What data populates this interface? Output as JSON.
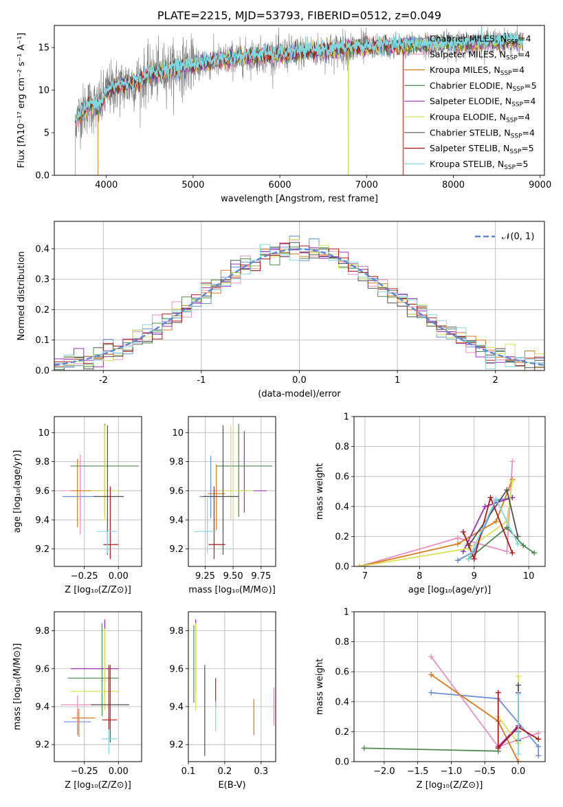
{
  "colors": {
    "Chabrier MILES": "#6a8fd8",
    "Salpeter MILES": "#e890c0",
    "Kroupa MILES": "#d67a1a",
    "Chabrier ELODIE": "#4e8a4e",
    "Salpeter ELODIE": "#9a30b8",
    "Kroupa ELODIE": "#d8e050",
    "Chabrier STELIB": "#505050",
    "Salpeter STELIB": "#b01818",
    "Kroupa STELIB": "#80d8e0",
    "gauss": "#5b86d6"
  },
  "chart_data": [
    {
      "id": "spectrum",
      "type": "line",
      "title": "PLATE=2215, MJD=53793, FIBERID=0512, z=0.049",
      "xlabel": "wavelength [Angstrom, rest frame]",
      "ylabel": "Flux [fλ10⁻¹⁷ erg cm⁻² s⁻¹ A⁻¹]",
      "xlim": [
        3400,
        9050
      ],
      "ylim": [
        0,
        17.6
      ],
      "xticks": [
        4000,
        5000,
        6000,
        7000,
        8000,
        9000
      ],
      "yticks": [
        0,
        5,
        10,
        15
      ],
      "continuum": {
        "x": [
          3620,
          3700,
          3800,
          3900,
          3950,
          4000,
          4100,
          4200,
          4300,
          4400,
          4500,
          4600,
          4700,
          4800,
          5000,
          5200,
          5400,
          5600,
          5800,
          6000,
          6200,
          6400,
          6600,
          6800,
          7000,
          7200,
          7400,
          7600,
          7800,
          8000,
          8200,
          8400,
          8600,
          8800
        ],
        "y": [
          6.0,
          7.2,
          8.3,
          8.0,
          8.6,
          9.8,
          10.4,
          10.6,
          10.8,
          11.2,
          11.8,
          12.0,
          12.4,
          12.5,
          13.0,
          13.3,
          13.6,
          13.9,
          14.1,
          14.2,
          14.4,
          14.6,
          14.7,
          14.9,
          15.0,
          15.2,
          15.2,
          15.3,
          15.4,
          15.4,
          15.5,
          15.6,
          15.7,
          15.7
        ]
      },
      "notes": [
        "dropouts to 0 near 3900, 6790 and 7420"
      ],
      "legend_position": "upper right",
      "legend": [
        "Chabrier MILES, N_SSP=4",
        "Salpeter MILES, N_SSP=4",
        "Kroupa MILES, N_SSP=4",
        "Chabrier ELODIE, N_SSP=5",
        "Salpeter ELODIE, N_SSP=4",
        "Kroupa ELODIE, N_SSP=4",
        "Chabrier STELIB, N_SSP=4",
        "Salpeter STELIB, N_SSP=5",
        "Kroupa STELIB, N_SSP=5"
      ],
      "series_keys": [
        "Chabrier MILES",
        "Salpeter MILES",
        "Kroupa MILES",
        "Chabrier ELODIE",
        "Salpeter ELODIE",
        "Kroupa ELODIE",
        "Chabrier STELIB",
        "Salpeter STELIB",
        "Kroupa STELIB"
      ]
    },
    {
      "id": "residuals",
      "type": "step",
      "xlabel": "(data-model)/error",
      "ylabel": "Normed distribution",
      "xlim": [
        -2.5,
        2.5
      ],
      "ylim": [
        0,
        0.49
      ],
      "xticks": [
        -2,
        -1,
        0,
        1,
        2
      ],
      "yticks": [
        0.0,
        0.1,
        0.2,
        0.3,
        0.4
      ],
      "bin_width": 0.1,
      "legend": [
        "𝒩(0, 1)"
      ],
      "legend_position": "upper right"
    },
    {
      "id": "age-vs-z",
      "type": "errorbar",
      "xlabel": "Z [log₁₀(Z/Z⊙)]",
      "ylabel": "age  [log₁₀(age/yr)]",
      "xlim": [
        -0.47,
        0.17
      ],
      "ylim": [
        9.08,
        10.11
      ],
      "xticks": [
        -0.25,
        0.0
      ],
      "xticklabels": [
        "−0.25",
        "0.00"
      ],
      "yticks": [
        9.2,
        9.4,
        9.6,
        9.8,
        10.0
      ],
      "points": [
        {
          "key": "Chabrier MILES",
          "x": -0.28,
          "xerr": [
            0.13,
            0.13
          ],
          "y": 9.56,
          "yerr": [
            0.15,
            0.2
          ]
        },
        {
          "key": "Salpeter MILES",
          "x": -0.28,
          "xerr": [
            0.15,
            0.15
          ],
          "y": 9.6,
          "yerr": [
            0.3,
            0.25
          ]
        },
        {
          "key": "Kroupa MILES",
          "x": -0.3,
          "xerr": [
            0.05,
            0.2
          ],
          "y": 9.6,
          "yerr": [
            0.25,
            0.22
          ]
        },
        {
          "key": "Chabrier ELODIE",
          "x": -0.1,
          "xerr": [
            0.25,
            0.25
          ],
          "y": 9.77,
          "yerr": [
            0.35,
            0.29
          ]
        },
        {
          "key": "Salpeter ELODIE",
          "x": -0.1,
          "xerr": [
            0.1,
            0.07
          ],
          "y": 9.6,
          "yerr": [
            0.15,
            0.45
          ]
        },
        {
          "key": "Kroupa ELODIE",
          "x": -0.1,
          "xerr": [
            0.1,
            0.1
          ],
          "y": 9.6,
          "yerr": [
            0.2,
            0.45
          ]
        },
        {
          "key": "Chabrier STELIB",
          "x": -0.08,
          "xerr": [
            0.1,
            0.12
          ],
          "y": 9.56,
          "yerr": [
            0.4,
            0.49
          ]
        },
        {
          "key": "Salpeter STELIB",
          "x": -0.06,
          "xerr": [
            0.05,
            0.06
          ],
          "y": 9.23,
          "yerr": [
            0.1,
            0.4
          ]
        },
        {
          "key": "Kroupa STELIB",
          "x": -0.08,
          "xerr": [
            0.08,
            0.07
          ],
          "y": 9.32,
          "yerr": [
            0.15,
            0.0
          ]
        }
      ]
    },
    {
      "id": "age-vs-mass",
      "type": "errorbar",
      "xlabel": "mass [log₁₀(M/M⊙)]",
      "ylabel": "",
      "xlim": [
        9.1,
        9.88
      ],
      "ylim": [
        9.08,
        10.11
      ],
      "xticks": [
        9.25,
        9.5,
        9.75
      ],
      "xticklabels": [
        "9.25",
        "9.50",
        "9.75"
      ],
      "yticks": [
        9.2,
        9.4,
        9.6,
        9.8,
        10.0
      ],
      "points": [
        {
          "key": "Chabrier MILES",
          "x": 9.3,
          "xerr": [
            0.1,
            0.03
          ],
          "y": 9.56,
          "yerr": [
            0.15,
            0.28
          ]
        },
        {
          "key": "Salpeter MILES",
          "x": 9.41,
          "xerr": [
            0.1,
            0.1
          ],
          "y": 9.6,
          "yerr": [
            0.3,
            0.22
          ]
        },
        {
          "key": "Kroupa MILES",
          "x": 9.35,
          "xerr": [
            0.08,
            0.08
          ],
          "y": 9.58,
          "yerr": [
            0.25,
            0.2
          ]
        },
        {
          "key": "Chabrier ELODIE",
          "x": 9.55,
          "xerr": [
            0.2,
            0.3
          ],
          "y": 9.77,
          "yerr": [
            0.35,
            0.29
          ]
        },
        {
          "key": "Salpeter ELODIE",
          "x": 9.6,
          "xerr": [
            0.05,
            0.2
          ],
          "y": 9.6,
          "yerr": [
            0.15,
            0.41
          ]
        },
        {
          "key": "Kroupa ELODIE",
          "x": 9.48,
          "xerr": [
            0.1,
            0.2
          ],
          "y": 9.6,
          "yerr": [
            0.2,
            0.45
          ]
        },
        {
          "key": "Chabrier STELIB",
          "x": 9.41,
          "xerr": [
            0.18,
            0.14
          ],
          "y": 9.56,
          "yerr": [
            0.4,
            0.49
          ]
        },
        {
          "key": "Salpeter STELIB",
          "x": 9.33,
          "xerr": [
            0.05,
            0.1
          ],
          "y": 9.23,
          "yerr": [
            0.1,
            0.4
          ]
        },
        {
          "key": "Kroupa STELIB",
          "x": 9.27,
          "xerr": [
            0.12,
            0.08
          ],
          "y": 9.32,
          "yerr": [
            0.15,
            0.23
          ]
        }
      ]
    },
    {
      "id": "weight-vs-age",
      "type": "line",
      "xlabel": "age  [log₁₀(age/yr)]",
      "ylabel": "mass weight",
      "xlim": [
        6.8,
        10.3
      ],
      "ylim": [
        0,
        1.0
      ],
      "xticks": [
        7,
        8,
        9,
        10
      ],
      "yticks": [
        0.0,
        0.2,
        0.4,
        0.6,
        0.8,
        1.0
      ],
      "series": [
        {
          "key": "Chabrier MILES",
          "x": [
            8.7,
            9.0,
            9.4,
            9.7
          ],
          "y": [
            0.04,
            0.1,
            0.44,
            0.46
          ]
        },
        {
          "key": "Salpeter MILES",
          "x": [
            6.9,
            8.7,
            9.6,
            9.7
          ],
          "y": [
            0.0,
            0.19,
            0.1,
            0.7
          ]
        },
        {
          "key": "Kroupa MILES",
          "x": [
            6.9,
            8.7,
            9.4,
            9.7
          ],
          "y": [
            0.0,
            0.15,
            0.3,
            0.58
          ]
        },
        {
          "key": "Chabrier ELODIE",
          "x": [
            8.9,
            9.6,
            9.9,
            10.1
          ],
          "y": [
            0.05,
            0.26,
            0.14,
            0.09
          ]
        },
        {
          "key": "Salpeter ELODIE",
          "x": [
            8.8,
            9.2,
            9.7
          ],
          "y": [
            0.1,
            0.4,
            0.46
          ]
        },
        {
          "key": "Kroupa ELODIE",
          "x": [
            6.9,
            8.9,
            9.6,
            9.7
          ],
          "y": [
            0.0,
            0.12,
            0.3,
            0.57
          ]
        },
        {
          "key": "Chabrier STELIB",
          "x": [
            8.9,
            9.6,
            9.8
          ],
          "y": [
            0.14,
            0.51,
            0.2
          ]
        },
        {
          "key": "Salpeter STELIB",
          "x": [
            8.8,
            9.0,
            9.3,
            9.7
          ],
          "y": [
            0.23,
            0.05,
            0.46,
            0.09
          ]
        },
        {
          "key": "Kroupa STELIB",
          "x": [
            8.9,
            9.4,
            9.8
          ],
          "y": [
            0.05,
            0.45,
            0.15
          ]
        }
      ]
    },
    {
      "id": "mass-vs-z",
      "type": "errorbar",
      "xlabel": "Z [log₁₀(Z/Z⊙)]",
      "ylabel": "mass [log₁₀(M/M⊙)]",
      "xlim": [
        -0.47,
        0.17
      ],
      "ylim": [
        9.11,
        9.9
      ],
      "xticks": [
        -0.25,
        0.0
      ],
      "xticklabels": [
        "−0.25",
        "0.00"
      ],
      "yticks": [
        9.2,
        9.4,
        9.6,
        9.8
      ],
      "points": [
        {
          "key": "Chabrier MILES",
          "x": -0.3,
          "xerr": [
            0.1,
            0.1
          ],
          "y": 9.32,
          "yerr": [
            0.07,
            0.05
          ]
        },
        {
          "key": "Salpeter MILES",
          "x": -0.3,
          "xerr": [
            0.12,
            0.12
          ],
          "y": 9.41,
          "yerr": [
            0.1,
            0.05
          ]
        },
        {
          "key": "Kroupa MILES",
          "x": -0.29,
          "xerr": [
            0.05,
            0.12
          ],
          "y": 9.34,
          "yerr": [
            0.1,
            0.05
          ]
        },
        {
          "key": "Chabrier ELODIE",
          "x": -0.12,
          "xerr": [
            0.25,
            0.12
          ],
          "y": 9.55,
          "yerr": [
            0.2,
            0.29
          ]
        },
        {
          "key": "Salpeter ELODIE",
          "x": -0.1,
          "xerr": [
            0.25,
            0.1
          ],
          "y": 9.6,
          "yerr": [
            0.15,
            0.26
          ]
        },
        {
          "key": "Kroupa ELODIE",
          "x": -0.1,
          "xerr": [
            0.25,
            0.1
          ],
          "y": 9.48,
          "yerr": [
            0.1,
            0.33
          ]
        },
        {
          "key": "Chabrier STELIB",
          "x": -0.06,
          "xerr": [
            0.14,
            0.14
          ],
          "y": 9.41,
          "yerr": [
            0.2,
            0.21
          ]
        },
        {
          "key": "Salpeter STELIB",
          "x": -0.07,
          "xerr": [
            0.05,
            0.06
          ],
          "y": 9.33,
          "yerr": [
            0.05,
            0.29
          ]
        },
        {
          "key": "Kroupa STELIB",
          "x": -0.07,
          "xerr": [
            0.05,
            0.06
          ],
          "y": 9.23,
          "yerr": [
            0.08,
            0.05
          ]
        }
      ]
    },
    {
      "id": "mass-vs-ebv",
      "type": "errorbar",
      "xlabel": "E(B-V)",
      "ylabel": "",
      "xlim": [
        0.1,
        0.34
      ],
      "ylim": [
        9.11,
        9.9
      ],
      "xticks": [
        0.1,
        0.2,
        0.3
      ],
      "yticks": [
        9.2,
        9.4,
        9.6,
        9.8
      ],
      "points": [
        {
          "key": "Chabrier MILES",
          "x": 0.12,
          "xerr": [
            0,
            0
          ],
          "y": 9.6,
          "yerr": [
            0.12,
            0.25
          ]
        },
        {
          "key": "Salpeter MILES",
          "x": 0.335,
          "xerr": [
            0,
            0
          ],
          "y": 9.4,
          "yerr": [
            0.1,
            0.1
          ]
        },
        {
          "key": "Kroupa MILES",
          "x": 0.28,
          "xerr": [
            0,
            0
          ],
          "y": 9.34,
          "yerr": [
            0.09,
            0.1
          ]
        },
        {
          "key": "Chabrier ELODIE",
          "x": 0.115,
          "xerr": [
            0,
            0
          ],
          "y": 9.55,
          "yerr": [
            0.13,
            0.28
          ]
        },
        {
          "key": "Salpeter ELODIE",
          "x": 0.12,
          "xerr": [
            0,
            0
          ],
          "y": 9.6,
          "yerr": [
            0.13,
            0.26
          ]
        },
        {
          "key": "Kroupa ELODIE",
          "x": 0.12,
          "xerr": [
            0,
            0
          ],
          "y": 9.6,
          "yerr": [
            0.22,
            0.24
          ]
        },
        {
          "key": "Chabrier STELIB",
          "x": 0.145,
          "xerr": [
            0,
            0
          ],
          "y": 9.4,
          "yerr": [
            0.26,
            0.22
          ]
        },
        {
          "key": "Salpeter STELIB",
          "x": 0.175,
          "xerr": [
            0,
            0
          ],
          "y": 9.48,
          "yerr": [
            0.08,
            0.07
          ]
        },
        {
          "key": "Kroupa STELIB",
          "x": 0.175,
          "xerr": [
            0,
            0
          ],
          "y": 9.36,
          "yerr": [
            0.09,
            0.07
          ]
        }
      ]
    },
    {
      "id": "weight-vs-z",
      "type": "line",
      "xlabel": "Z [log₁₀(Z/Z⊙)]",
      "ylabel": "mass weight",
      "xlim": [
        -2.45,
        0.4
      ],
      "ylim": [
        0,
        1.0
      ],
      "xticks": [
        -2.0,
        -1.5,
        -1.0,
        -0.5,
        0.0
      ],
      "xticklabels": [
        "−2.0",
        "−1.5",
        "−1.0",
        "−0.5",
        "0.0"
      ],
      "yticks": [
        0.0,
        0.2,
        0.4,
        0.6,
        0.8,
        1.0
      ],
      "series": [
        {
          "key": "Chabrier MILES",
          "x": [
            -1.3,
            -0.3,
            0.3,
            0.3
          ],
          "y": [
            0.46,
            0.42,
            0.1,
            0.04
          ]
        },
        {
          "key": "Salpeter MILES",
          "x": [
            -1.3,
            -0.3,
            0.3
          ],
          "y": [
            0.7,
            0.1,
            0.19
          ]
        },
        {
          "key": "Kroupa MILES",
          "x": [
            -1.3,
            -0.3,
            0.0
          ],
          "y": [
            0.58,
            0.27,
            0.0
          ]
        },
        {
          "key": "Chabrier ELODIE",
          "x": [
            -2.3,
            -0.3
          ],
          "y": [
            0.09,
            0.07
          ]
        },
        {
          "key": "Salpeter ELODIE",
          "x": [
            -0.3,
            0.0,
            0.0
          ],
          "y": [
            0.1,
            0.24,
            0.46
          ]
        },
        {
          "key": "Kroupa ELODIE",
          "x": [
            -0.3,
            0.0,
            0.0
          ],
          "y": [
            0.3,
            0.12,
            0.57
          ]
        },
        {
          "key": "Chabrier STELIB",
          "x": [
            0.0,
            0.0,
            0.0
          ],
          "y": [
            0.51,
            0.2,
            0.14
          ]
        },
        {
          "key": "Salpeter STELIB",
          "x": [
            -0.3,
            -0.3,
            0.0,
            0.3
          ],
          "y": [
            0.46,
            0.09,
            0.23,
            0.15
          ]
        },
        {
          "key": "Kroupa STELIB",
          "x": [
            0.0,
            0.0,
            0.0
          ],
          "y": [
            0.45,
            0.15,
            0.05
          ]
        }
      ]
    }
  ]
}
